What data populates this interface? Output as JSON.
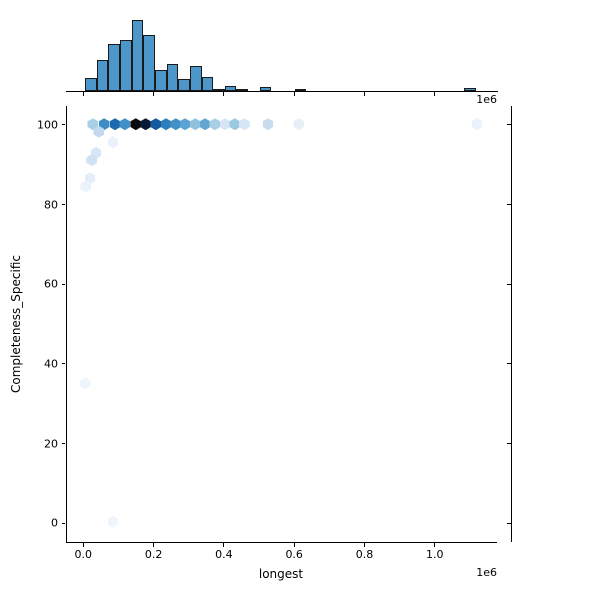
{
  "figure": {
    "xlabel": "longest",
    "ylabel": "Completeness_Specific",
    "x_offset_label_top": "1e6",
    "x_offset_label_bottom": "1e6"
  },
  "chart_data": [
    {
      "type": "scatter",
      "subtype": "hexbin",
      "title": "",
      "xlabel": "longest",
      "ylabel": "Completeness_Specific",
      "x_unit_multiplier": "1e6",
      "xlim": [
        -0.056,
        1.178
      ],
      "ylim": [
        -5,
        105
      ],
      "x_ticks": [
        {
          "v": 0.0,
          "label": "0.0"
        },
        {
          "v": 0.2,
          "label": "0.2"
        },
        {
          "v": 0.4,
          "label": "0.4"
        },
        {
          "v": 0.6,
          "label": "0.6"
        },
        {
          "v": 0.8,
          "label": "0.8"
        },
        {
          "v": 1.0,
          "label": "1.0"
        }
      ],
      "y_ticks": [
        {
          "v": 0,
          "label": "0"
        },
        {
          "v": 20,
          "label": "20"
        },
        {
          "v": 40,
          "label": "40"
        },
        {
          "v": 60,
          "label": "60"
        },
        {
          "v": 80,
          "label": "80"
        },
        {
          "v": 100,
          "label": "100"
        }
      ],
      "colormap": "Blues",
      "legend": "none",
      "grid": false,
      "points": [
        {
          "x": 0.029,
          "y": 100,
          "color": "#a9cfe5"
        },
        {
          "x": 0.061,
          "y": 100,
          "color": "#3d8dc4"
        },
        {
          "x": 0.092,
          "y": 100,
          "color": "#1c6bb0"
        },
        {
          "x": 0.12,
          "y": 100,
          "color": "#4191c6"
        },
        {
          "x": 0.151,
          "y": 100,
          "color": "#070b10"
        },
        {
          "x": 0.179,
          "y": 100,
          "color": "#0a1a33"
        },
        {
          "x": 0.208,
          "y": 100,
          "color": "#15599f"
        },
        {
          "x": 0.237,
          "y": 100,
          "color": "#2e7ebc"
        },
        {
          "x": 0.265,
          "y": 100,
          "color": "#4191c6"
        },
        {
          "x": 0.291,
          "y": 100,
          "color": "#5ba3d2"
        },
        {
          "x": 0.32,
          "y": 100,
          "color": "#8fc2df"
        },
        {
          "x": 0.348,
          "y": 100,
          "color": "#61a7d2"
        },
        {
          "x": 0.376,
          "y": 100,
          "color": "#a9cfe5"
        },
        {
          "x": 0.405,
          "y": 100,
          "color": "#d6e6f4"
        },
        {
          "x": 0.433,
          "y": 100,
          "color": "#9cc8e2"
        },
        {
          "x": 0.46,
          "y": 100,
          "color": "#d6e6f4"
        },
        {
          "x": 0.527,
          "y": 100,
          "color": "#c7dcef"
        },
        {
          "x": 0.615,
          "y": 100,
          "color": "#e7f0f9"
        },
        {
          "x": 1.122,
          "y": 100,
          "color": "#eaf2fb"
        },
        {
          "x": 0.046,
          "y": 98.1,
          "color": "#c3daee"
        },
        {
          "x": 0.086,
          "y": 95.5,
          "color": "#e9f1fa"
        },
        {
          "x": 0.038,
          "y": 92.8,
          "color": "#d6e6f4"
        },
        {
          "x": 0.026,
          "y": 91.0,
          "color": "#cfe1f2"
        },
        {
          "x": 0.021,
          "y": 86.4,
          "color": "#e4eef8"
        },
        {
          "x": 0.009,
          "y": 84.4,
          "color": "#eaf2fb"
        },
        {
          "x": 0.007,
          "y": 35.0,
          "color": "#eef5fc"
        },
        {
          "x": 0.086,
          "y": 0.3,
          "color": "#eef5fc"
        }
      ]
    },
    {
      "type": "bar",
      "subtype": "top-marginal-histogram",
      "title": "",
      "x_unit_multiplier": "1e6",
      "bin_width": 0.0332,
      "fill_color": "#4c96ca",
      "edge_color": "#1a1a1a",
      "bars": [
        {
          "x0": 0.0065,
          "h": 0.183
        },
        {
          "x0": 0.0397,
          "h": 0.437
        },
        {
          "x0": 0.0728,
          "h": 0.662
        },
        {
          "x0": 0.106,
          "h": 0.718
        },
        {
          "x0": 0.1391,
          "h": 1.0
        },
        {
          "x0": 0.1723,
          "h": 0.789
        },
        {
          "x0": 0.2054,
          "h": 0.296
        },
        {
          "x0": 0.2386,
          "h": 0.38
        },
        {
          "x0": 0.2717,
          "h": 0.169
        },
        {
          "x0": 0.3049,
          "h": 0.352
        },
        {
          "x0": 0.338,
          "h": 0.197
        },
        {
          "x0": 0.3712,
          "h": 0.028
        },
        {
          "x0": 0.4043,
          "h": 0.07
        },
        {
          "x0": 0.4375,
          "h": 0.011
        },
        {
          "x0": 0.5038,
          "h": 0.049
        },
        {
          "x0": 0.6032,
          "h": 0.028
        },
        {
          "x0": 1.085,
          "h": 0.035
        }
      ]
    }
  ]
}
